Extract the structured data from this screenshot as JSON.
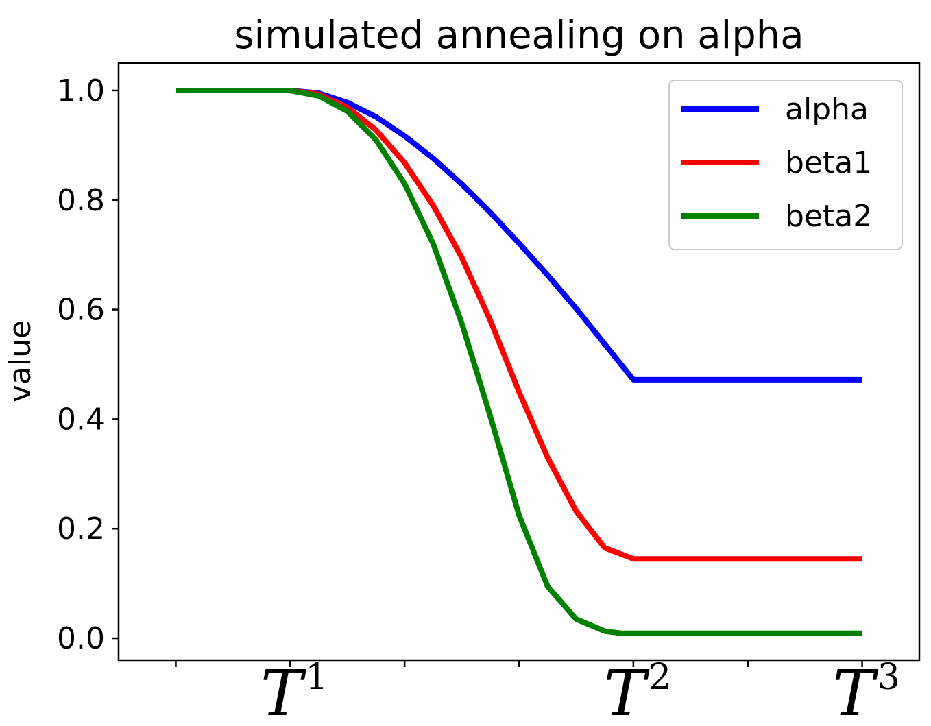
{
  "chart_data": {
    "type": "line",
    "title": "simulated annealing on alpha",
    "xlabel": "",
    "ylabel": "value",
    "xlim": [
      -0.5,
      6.5
    ],
    "ylim": [
      -0.04,
      1.05
    ],
    "yticks": [
      0.0,
      0.2,
      0.4,
      0.6,
      0.8,
      1.0
    ],
    "ytick_labels": [
      "0.0",
      "0.2",
      "0.4",
      "0.6",
      "0.8",
      "1.0"
    ],
    "xticks_minor": [
      0,
      2,
      3,
      5
    ],
    "xticks_labeled": [
      {
        "x": 1,
        "base": "T",
        "sup": "1"
      },
      {
        "x": 4,
        "base": "T",
        "sup": "2"
      },
      {
        "x": 6,
        "base": "T",
        "sup": "3"
      }
    ],
    "grid": false,
    "legend_position": "top-right",
    "series": [
      {
        "name": "alpha",
        "color": "#0000ff",
        "x": [
          0,
          1,
          1.25,
          1.5,
          1.75,
          2,
          2.25,
          2.5,
          2.75,
          3,
          3.25,
          3.5,
          3.75,
          4,
          4.5,
          5,
          5.5,
          6
        ],
        "y": [
          1.0,
          1.0,
          0.995,
          0.978,
          0.952,
          0.917,
          0.876,
          0.829,
          0.777,
          0.721,
          0.663,
          0.602,
          0.537,
          0.472,
          0.472,
          0.472,
          0.472,
          0.472
        ]
      },
      {
        "name": "beta1",
        "color": "#ff0000",
        "x": [
          0,
          1,
          1.25,
          1.5,
          1.75,
          2,
          2.25,
          2.5,
          2.75,
          3,
          3.25,
          3.5,
          3.75,
          4,
          4.5,
          5,
          5.5,
          6
        ],
        "y": [
          1.0,
          1.0,
          0.993,
          0.969,
          0.928,
          0.868,
          0.79,
          0.695,
          0.58,
          0.45,
          0.33,
          0.232,
          0.165,
          0.145,
          0.145,
          0.145,
          0.145,
          0.145
        ]
      },
      {
        "name": "beta2",
        "color": "#008000",
        "x": [
          0,
          1,
          1.25,
          1.5,
          1.75,
          2,
          2.25,
          2.5,
          2.75,
          3,
          3.25,
          3.5,
          3.75,
          3.9,
          4,
          4.5,
          5,
          5.5,
          6
        ],
        "y": [
          1.0,
          1.0,
          0.99,
          0.962,
          0.91,
          0.83,
          0.72,
          0.575,
          0.405,
          0.225,
          0.095,
          0.035,
          0.013,
          0.009,
          0.009,
          0.009,
          0.009,
          0.009,
          0.009
        ]
      }
    ]
  }
}
